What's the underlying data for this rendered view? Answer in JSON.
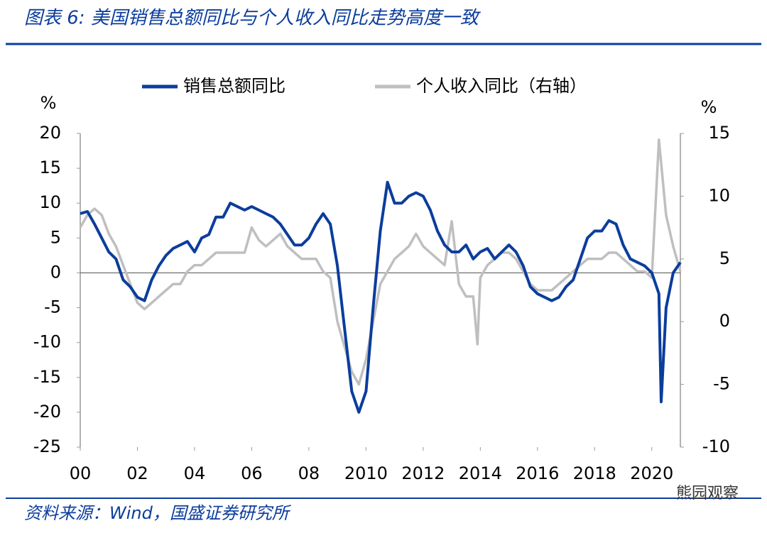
{
  "header": {
    "title": "图表 6:  美国销售总额同比与个人收入同比走势高度一致"
  },
  "chart_data": {
    "type": "line",
    "y_unit": "%",
    "y2_unit": "%",
    "xlim": [
      2000,
      2021
    ],
    "xticks": [
      {
        "value": 2000,
        "label": "00"
      },
      {
        "value": 2002,
        "label": "02"
      },
      {
        "value": 2004,
        "label": "04"
      },
      {
        "value": 2006,
        "label": "06"
      },
      {
        "value": 2008,
        "label": "08"
      },
      2010,
      2012,
      2014,
      2016,
      2018,
      2020
    ],
    "ylim": [
      -25,
      20
    ],
    "yticks": [
      -25,
      -20,
      -15,
      -10,
      -5,
      0,
      5,
      10,
      15,
      20
    ],
    "y2lim": [
      -10,
      15
    ],
    "y2ticks": [
      -10,
      -5,
      0,
      5,
      10,
      15
    ],
    "legend": "top",
    "series": [
      {
        "name": "销售总额同比",
        "color": "#0b3d9c",
        "x": [
          2000.0,
          2000.25,
          2000.5,
          2000.75,
          2001.0,
          2001.25,
          2001.5,
          2001.75,
          2002.0,
          2002.25,
          2002.5,
          2002.75,
          2003.0,
          2003.25,
          2003.5,
          2003.75,
          2004.0,
          2004.25,
          2004.5,
          2004.75,
          2005.0,
          2005.25,
          2005.5,
          2005.75,
          2006.0,
          2006.25,
          2006.5,
          2006.75,
          2007.0,
          2007.25,
          2007.5,
          2007.75,
          2008.0,
          2008.25,
          2008.5,
          2008.75,
          2009.0,
          2009.25,
          2009.5,
          2009.75,
          2010.0,
          2010.25,
          2010.5,
          2010.75,
          2011.0,
          2011.25,
          2011.5,
          2011.75,
          2012.0,
          2012.25,
          2012.5,
          2012.75,
          2013.0,
          2013.25,
          2013.5,
          2013.75,
          2014.0,
          2014.25,
          2014.5,
          2014.75,
          2015.0,
          2015.25,
          2015.5,
          2015.75,
          2016.0,
          2016.25,
          2016.5,
          2016.75,
          2017.0,
          2017.25,
          2017.5,
          2017.75,
          2018.0,
          2018.25,
          2018.5,
          2018.75,
          2019.0,
          2019.25,
          2019.5,
          2019.75,
          2020.0,
          2020.25,
          2020.33,
          2020.5,
          2020.75,
          2021.0
        ],
        "values": [
          8.5,
          8.8,
          7,
          5,
          3,
          2,
          -1,
          -2,
          -3.5,
          -4,
          -1,
          1,
          2.5,
          3.5,
          4,
          4.5,
          3,
          5,
          5.5,
          8,
          8,
          10,
          9.5,
          9,
          9.5,
          9,
          8.5,
          8,
          7,
          5.5,
          4,
          4,
          5,
          7,
          8.5,
          7,
          1,
          -8,
          -17,
          -20,
          -17,
          -5,
          6,
          13,
          10,
          10,
          11,
          11.5,
          11,
          9,
          6,
          4,
          3,
          3,
          4,
          2,
          3,
          3.5,
          2,
          3,
          4,
          3,
          1,
          -2,
          -3,
          -3.5,
          -4,
          -3.5,
          -2,
          -1,
          2,
          5,
          6,
          6,
          7.5,
          7,
          4,
          2,
          1.5,
          1,
          0,
          -3,
          -18.5,
          -5,
          0,
          1.5
        ]
      },
      {
        "name": "个人收入同比（右轴）",
        "color": "#bfbfbf",
        "axis": "y2",
        "x": [
          2000.0,
          2000.25,
          2000.5,
          2000.75,
          2001.0,
          2001.25,
          2001.5,
          2001.75,
          2002.0,
          2002.25,
          2002.5,
          2002.75,
          2003.0,
          2003.25,
          2003.5,
          2003.75,
          2004.0,
          2004.25,
          2004.5,
          2004.75,
          2005.0,
          2005.25,
          2005.5,
          2005.75,
          2006.0,
          2006.25,
          2006.5,
          2006.75,
          2007.0,
          2007.25,
          2007.5,
          2007.75,
          2008.0,
          2008.25,
          2008.5,
          2008.75,
          2009.0,
          2009.25,
          2009.5,
          2009.75,
          2010.0,
          2010.25,
          2010.5,
          2010.75,
          2011.0,
          2011.25,
          2011.5,
          2011.75,
          2012.0,
          2012.25,
          2012.5,
          2012.75,
          2013.0,
          2013.25,
          2013.5,
          2013.75,
          2013.9,
          2014.0,
          2014.25,
          2014.5,
          2014.75,
          2015.0,
          2015.25,
          2015.5,
          2015.75,
          2016.0,
          2016.25,
          2016.5,
          2016.75,
          2017.0,
          2017.25,
          2017.5,
          2017.75,
          2018.0,
          2018.25,
          2018.5,
          2018.75,
          2019.0,
          2019.25,
          2019.5,
          2019.75,
          2020.0,
          2020.25,
          2020.5,
          2020.75,
          2021.0
        ],
        "values": [
          7.5,
          8.5,
          9,
          8.5,
          7,
          6,
          4.5,
          3,
          1.5,
          1,
          1.5,
          2,
          2.5,
          3,
          3,
          4,
          4.5,
          4.5,
          5,
          5.5,
          5.5,
          5.5,
          5.5,
          5.5,
          7.5,
          6.5,
          6,
          6.5,
          7,
          6,
          5.5,
          5,
          5,
          5,
          4,
          3.5,
          0,
          -2,
          -4,
          -5,
          -3,
          0,
          3,
          4,
          5,
          5.5,
          6,
          7,
          6,
          5.5,
          5,
          4.5,
          8,
          3,
          2,
          2,
          -1.8,
          3.5,
          4.5,
          5,
          5.5,
          5.5,
          5,
          4,
          3,
          2.5,
          2.5,
          2.5,
          3,
          3.5,
          4,
          4.5,
          5,
          5,
          5,
          5.5,
          5.5,
          5,
          4.5,
          4,
          4,
          3.5,
          14.5,
          8.5,
          6,
          4
        ]
      }
    ]
  },
  "footer": {
    "source": "资料来源：Wind，国盛证券研究所",
    "watermark": "熊园观察"
  }
}
